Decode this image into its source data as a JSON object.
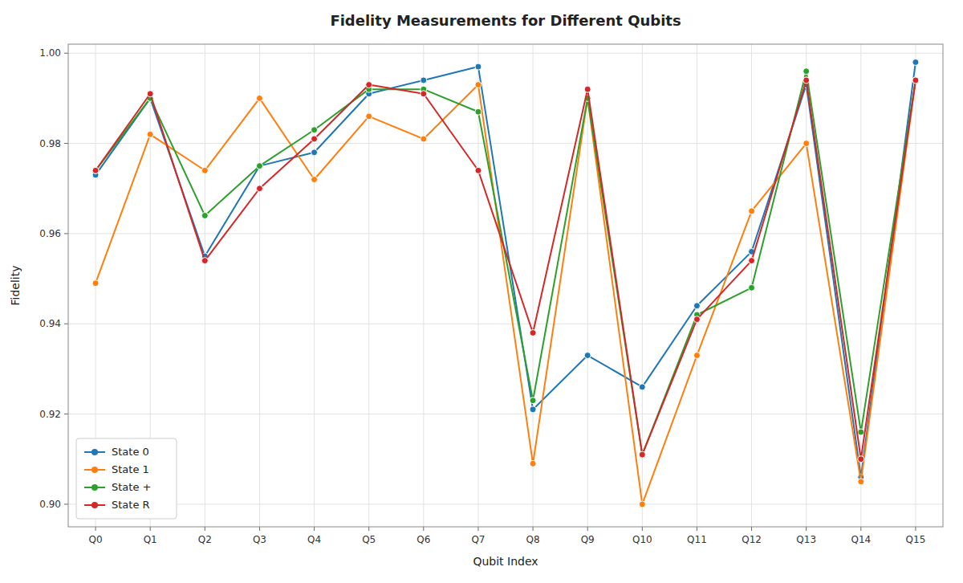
{
  "chart_data": {
    "type": "line",
    "title": "Fidelity Measurements for Different Qubits",
    "x_label": "Qubit Index",
    "y_label": "Fidelity",
    "categories": [
      "Q0",
      "Q1",
      "Q2",
      "Q3",
      "Q4",
      "Q5",
      "Q6",
      "Q7",
      "Q8",
      "Q9",
      "Q10",
      "Q11",
      "Q12",
      "Q13",
      "Q14",
      "Q15"
    ],
    "series": [
      {
        "name": "State 0",
        "color": "#1f77b4",
        "values": [
          0.973,
          0.99,
          0.955,
          0.975,
          0.978,
          0.991,
          0.994,
          0.997,
          0.921,
          0.933,
          0.926,
          0.944,
          0.956,
          0.993,
          0.906,
          0.998
        ]
      },
      {
        "name": "State 1",
        "color": "#ff7f0e",
        "values": [
          0.949,
          0.982,
          0.974,
          0.99,
          0.972,
          0.986,
          0.981,
          0.993,
          0.909,
          0.99,
          0.9,
          0.933,
          0.965,
          0.98,
          0.905,
          0.994
        ]
      },
      {
        "name": "State +",
        "color": "#2ca02c",
        "values": [
          0.974,
          0.99,
          0.964,
          0.975,
          0.983,
          0.992,
          0.992,
          0.987,
          0.923,
          0.99,
          0.911,
          0.942,
          0.948,
          0.996,
          0.916,
          0.994
        ]
      },
      {
        "name": "State R",
        "color": "#d62728",
        "values": [
          0.974,
          0.991,
          0.954,
          0.97,
          0.981,
          0.993,
          0.991,
          0.974,
          0.938,
          0.992,
          0.911,
          0.941,
          0.954,
          0.994,
          0.91,
          0.994
        ]
      }
    ],
    "ylim": [
      0.895,
      1.002
    ],
    "yticks": [
      {
        "value": 0.9,
        "label": "0.90"
      },
      0.92,
      0.94,
      0.96,
      0.98,
      {
        "value": 1,
        "label": "1.00"
      }
    ],
    "grid": true,
    "legend": "lower-left",
    "marker": "circle"
  }
}
